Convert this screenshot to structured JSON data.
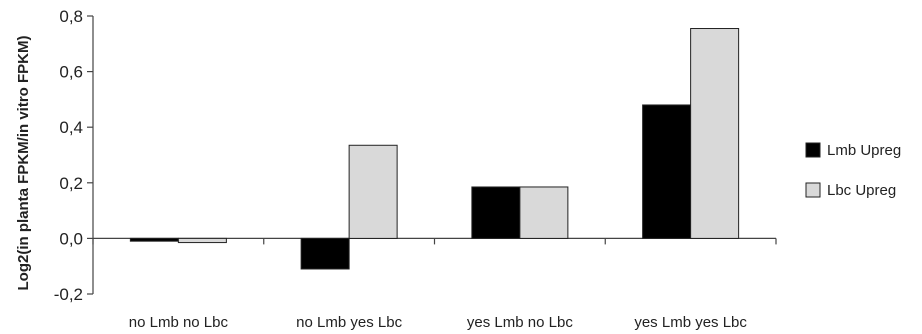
{
  "chart_data": {
    "type": "bar",
    "title": "",
    "xlabel": "",
    "ylabel": "Log2(in planta FPKM/in vitro FPKM)",
    "categories": [
      "no Lmb no Lbc",
      "no Lmb yes Lbc",
      "yes Lmb no Lbc",
      "yes Lmb yes Lbc"
    ],
    "series": [
      {
        "name": "Lmb Upreg",
        "values": [
          -0.01,
          -0.11,
          0.185,
          0.48
        ],
        "color": "#000000"
      },
      {
        "name": "Lbc Upreg",
        "values": [
          -0.015,
          0.335,
          0.185,
          0.755
        ],
        "color": "#d9d9d9"
      }
    ],
    "ylim": [
      -0.2,
      0.8
    ],
    "yticks": [
      -0.2,
      0.0,
      0.2,
      0.4,
      0.6,
      0.8
    ],
    "ytick_labels": [
      "-0,2",
      "0,0",
      "0,2",
      "0,4",
      "0,6",
      "0,8"
    ],
    "grid": false,
    "legend_position": "right"
  }
}
